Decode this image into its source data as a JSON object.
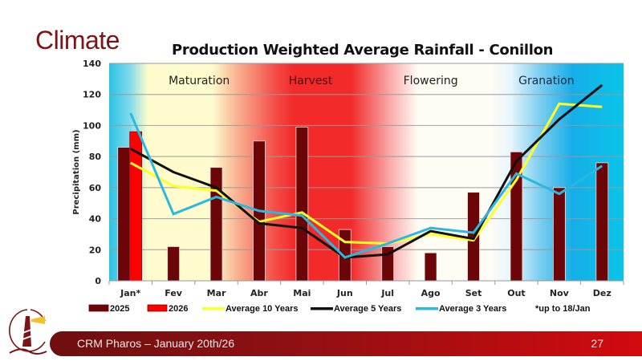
{
  "slide": {
    "title": "Climate",
    "footer_text": "CRM Pharos –  January 20th/26",
    "page_number": "27",
    "logo_icon": "lighthouse-logo-icon"
  },
  "colors": {
    "bar_2025": "#6b0507",
    "bar_2026": "#ff0000",
    "avg10": "#ffff26",
    "avg5": "#111111",
    "avg3": "#2bb8e0",
    "title_red": "#7a1416"
  },
  "chart_data": {
    "type": "bar",
    "title": "Production Weighted Average Rainfall - Conillon",
    "xlabel": "",
    "ylabel": "Precipitation (mm)",
    "ylim": [
      0,
      140
    ],
    "yticks": [
      0,
      20,
      40,
      60,
      80,
      100,
      120,
      140
    ],
    "grid": true,
    "categories": [
      "Jan*",
      "Fev",
      "Mar",
      "Abr",
      "Mai",
      "Jun",
      "Jul",
      "Ago",
      "Set",
      "Out",
      "Nov",
      "Dez"
    ],
    "series": [
      {
        "name": "2025",
        "type": "bar",
        "values": [
          86,
          22,
          73,
          90,
          99,
          33,
          22,
          18,
          57,
          83,
          60,
          76
        ]
      },
      {
        "name": "2026",
        "type": "bar",
        "values": [
          96,
          null,
          null,
          null,
          null,
          null,
          null,
          null,
          null,
          null,
          null,
          null
        ]
      },
      {
        "name": "Average 10 Years",
        "type": "line",
        "values": [
          76,
          61,
          58,
          38,
          44,
          25,
          24,
          30,
          26,
          65,
          114,
          112
        ]
      },
      {
        "name": "Average 5 Years",
        "type": "line",
        "values": [
          85,
          70,
          60,
          37,
          34,
          15,
          17,
          32,
          27,
          77,
          104,
          126
        ]
      },
      {
        "name": "Average 3 Years",
        "type": "line",
        "values": [
          108,
          43,
          54,
          45,
          42,
          15,
          24,
          34,
          31,
          69,
          56,
          74
        ]
      }
    ],
    "season_bands": [
      {
        "label": "Maturation",
        "months": [
          "Jan*",
          "Fev",
          "Mar"
        ]
      },
      {
        "label": "Harvest",
        "months": [
          "Abr",
          "Mai",
          "Jun"
        ]
      },
      {
        "label": "Flowering",
        "months": [
          "Jul",
          "Ago",
          "Set"
        ]
      },
      {
        "label": "Granation",
        "months": [
          "Out",
          "Nov",
          "Dez"
        ]
      }
    ],
    "legend": [
      "2025",
      "2026",
      "Average 10 Years",
      "Average 5 Years",
      "Average 3 Years"
    ],
    "legend_position": "bottom",
    "annotation": "*up to 18/Jan"
  }
}
